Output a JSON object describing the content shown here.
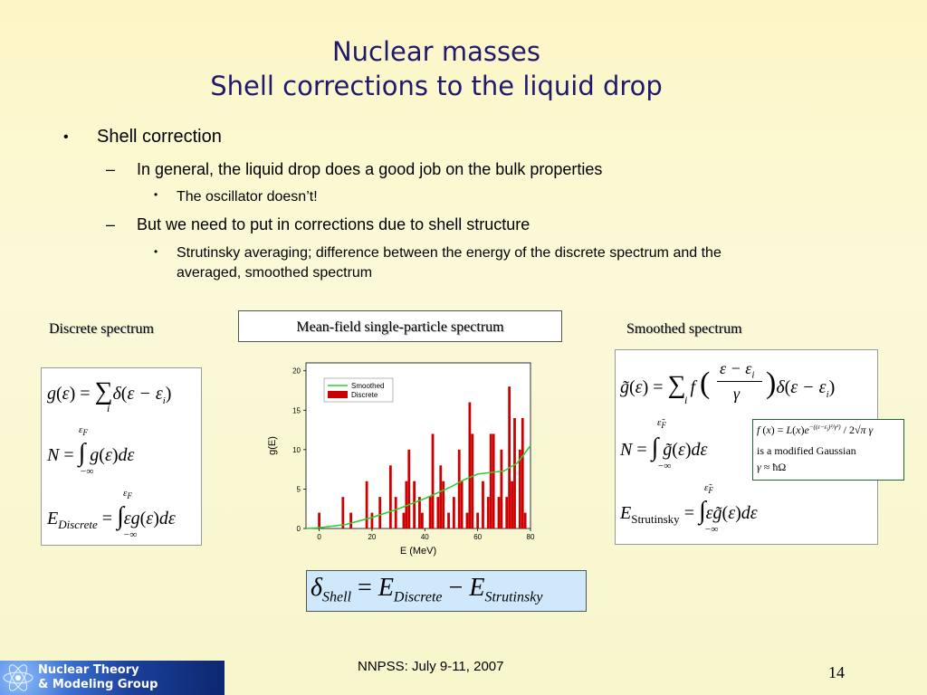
{
  "slide": {
    "title_line1": "Nuclear masses",
    "title_line2": "Shell corrections to the liquid drop",
    "bullets": {
      "l1": "Shell correction",
      "l2a": "In general, the liquid drop does a good job on the bulk properties",
      "l3a": "The oscillator doesn’t!",
      "l2b": "But we need to put in corrections due to shell structure",
      "l3b_line1": "Strutinsky averaging; difference between the energy of the discrete spectrum and the",
      "l3b_line2": "averaged, smoothed spectrum"
    },
    "labels": {
      "discrete": "Discrete spectrum",
      "meanfield": "Mean-field single-particle spectrum",
      "smoothed": "Smoothed spectrum"
    },
    "gaussian_note": {
      "line2": "is a modified Gaussian"
    },
    "footer": {
      "logo_line1": "Nuclear Theory",
      "logo_line2": "& Modeling Group",
      "center": "NNPSS: July 9-11, 2007",
      "page": "14"
    }
  },
  "chart_data": {
    "type": "bar",
    "xlabel": "E (MeV)",
    "ylabel": "g(E)",
    "xlim": [
      -5,
      80
    ],
    "ylim": [
      0,
      21
    ],
    "xticks": [
      0,
      20,
      40,
      60,
      80
    ],
    "yticks": [
      0,
      5,
      10,
      15,
      20
    ],
    "legend_position": "top-left",
    "series": [
      {
        "name": "Discrete",
        "kind": "bar",
        "color": "#cc0000",
        "x": [
          0,
          9,
          12,
          18,
          20,
          23,
          27,
          29,
          32,
          33,
          34,
          36,
          38,
          39,
          42,
          43,
          45,
          46,
          47,
          49,
          51,
          53,
          54,
          56,
          57,
          58,
          60,
          62,
          64,
          65,
          66,
          68,
          69,
          71,
          72,
          73,
          74,
          76,
          77,
          78
        ],
        "values": [
          2,
          4,
          2,
          6,
          2,
          4,
          8,
          4,
          2,
          6,
          10,
          6,
          4,
          2,
          4,
          12,
          4,
          8,
          6,
          2,
          4,
          10,
          6,
          2,
          16,
          12,
          2,
          6,
          4,
          12,
          12,
          4,
          10,
          4,
          18,
          6,
          14,
          10,
          14,
          2
        ]
      },
      {
        "name": "Smoothed",
        "kind": "line",
        "color": "#33cc33",
        "x": [
          -5,
          0,
          10,
          20,
          30,
          40,
          50,
          55,
          60,
          65,
          70,
          75,
          80
        ],
        "values": [
          0,
          0.1,
          0.5,
          1.4,
          2.5,
          3.8,
          5.3,
          6.2,
          6.9,
          7.1,
          7.3,
          8.3,
          10.5
        ]
      }
    ]
  }
}
